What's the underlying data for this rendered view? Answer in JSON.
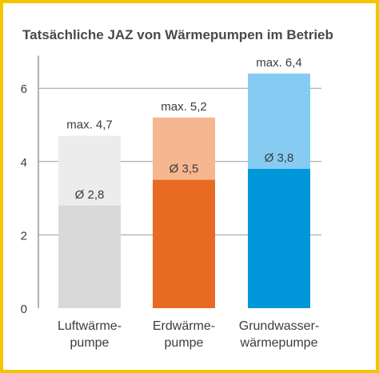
{
  "chart_data": {
    "type": "bar",
    "title": "Tatsächliche JAZ von Wärmepumpen im Betrieb",
    "categories": [
      [
        "Luftwärme-",
        "pumpe"
      ],
      [
        "Erdwärme-",
        "pumpe"
      ],
      [
        "Grundwasser-",
        "wärmepumpe"
      ]
    ],
    "series": [
      {
        "values": [
          2.8,
          3.5,
          3.8
        ],
        "labels": [
          "Ø 2,8",
          "Ø 3,5",
          "Ø 3,8"
        ]
      },
      {
        "values": [
          4.7,
          5.2,
          6.4
        ],
        "labels": [
          "max. 4,7",
          "max. 5,2",
          "max. 6,4"
        ]
      }
    ],
    "colors_avg": [
      "#d9d9d9",
      "#e96a22",
      "#0097da"
    ],
    "colors_max": [
      "#ececec",
      "#f6b68f",
      "#86ccf2"
    ],
    "yticks": [
      "0",
      "2",
      "4",
      "6"
    ],
    "ytick_values": [
      0,
      2,
      4,
      6
    ],
    "ylim": [
      0,
      6.8
    ],
    "grid": true,
    "xlabel": "",
    "ylabel": ""
  }
}
